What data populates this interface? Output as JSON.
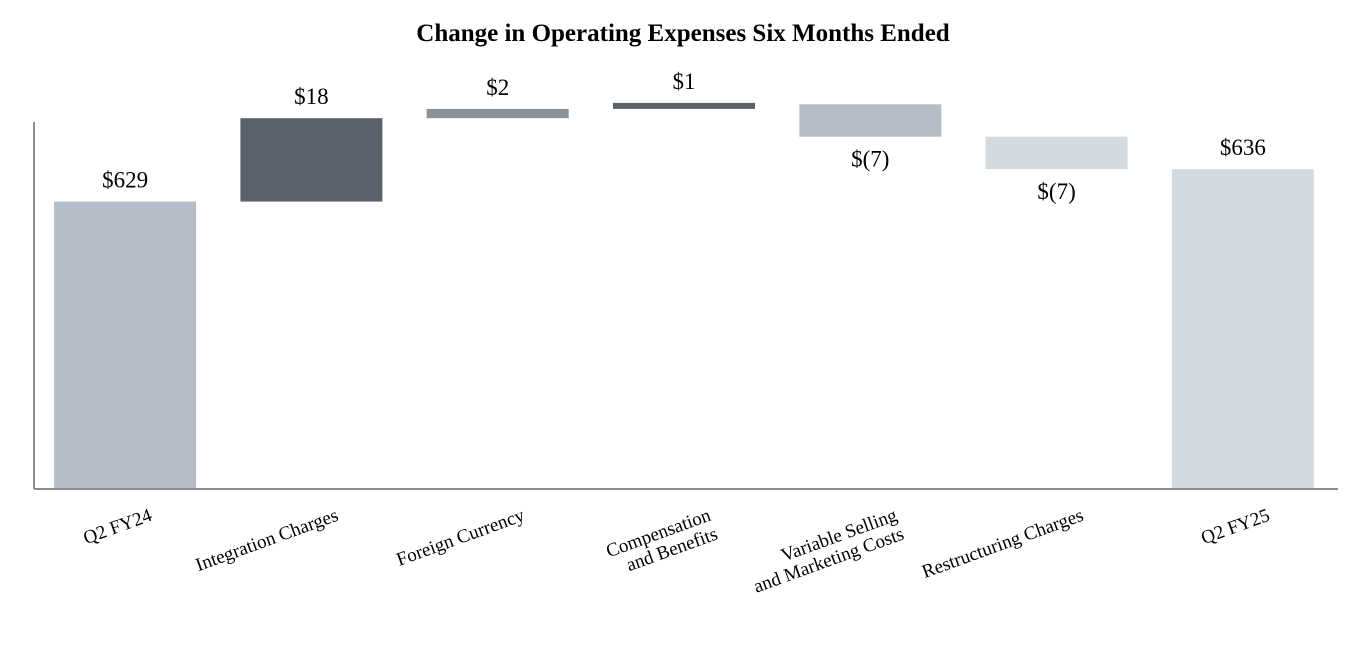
{
  "chart_data": {
    "type": "bar",
    "subtype": "waterfall",
    "title": "Change in Operating Expenses Six Months Ended",
    "xlabel": "",
    "ylabel": "",
    "categories": [
      [
        "Q2 FY24"
      ],
      [
        "Integration Charges"
      ],
      [
        "Foreign Currency"
      ],
      [
        "Compensation",
        "and Benefits"
      ],
      [
        "Variable Selling",
        "and Marketing Costs"
      ],
      [
        "Restructuring Charges"
      ],
      [
        "Q2 FY25"
      ]
    ],
    "values": [
      629,
      18,
      2,
      1,
      -7,
      -7,
      636
    ],
    "kinds": [
      "total",
      "delta",
      "delta",
      "delta",
      "delta",
      "delta",
      "total"
    ],
    "value_labels": [
      "$629",
      "$18",
      "$2",
      "$1",
      "$(7)",
      "$(7)",
      "$636"
    ],
    "colors": [
      "#b5bec8",
      "#5a636c",
      "#8a9299",
      "#5a636c",
      "#b5bec8",
      "#d2dae0",
      "#d2dae0"
    ],
    "ylim": [
      567,
      652
    ],
    "grid": false,
    "legend": "none"
  }
}
